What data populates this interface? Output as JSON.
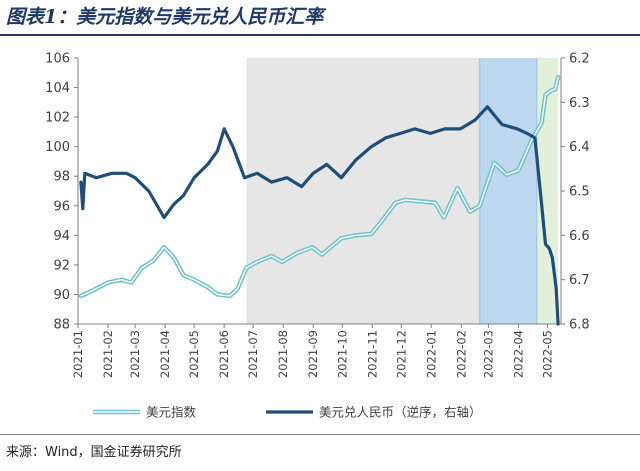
{
  "figure": {
    "title": "图表1：美元指数与美元兑人民币汇率",
    "source": "来源：Wind，国金证券研究所"
  },
  "colors": {
    "title": "#1f3864",
    "usd_index": "#6fc3cf",
    "usdcny": "#1f4e79",
    "band_gray": "#e6e6e6",
    "band_blue": "#bdd7ee",
    "band_green": "#e2efda"
  },
  "chart_data": {
    "type": "line",
    "title": "",
    "x_tick_labels": [
      "2021-01",
      "2021-02",
      "2021-03",
      "2021-04",
      "2021-05",
      "2021-06",
      "2021-07",
      "2021-08",
      "2021-09",
      "2021-10",
      "2021-11",
      "2021-12",
      "2022-01",
      "2022-02",
      "2022-03",
      "2022-04",
      "2022-05"
    ],
    "y_left": {
      "min": 88,
      "max": 106,
      "ticks": [
        88,
        90,
        92,
        94,
        96,
        98,
        100,
        102,
        104,
        106
      ]
    },
    "y_right": {
      "min": 6.2,
      "max": 6.8,
      "inverted": true,
      "ticks": [
        "6.2",
        "6.3",
        "6.4",
        "6.5",
        "6.6",
        "6.7",
        "6.8"
      ]
    },
    "shaded_periods": [
      {
        "from": "2021-06-24",
        "to": "2022-02-20",
        "color": "gray"
      },
      {
        "from": "2022-02-20",
        "to": "2022-04-20",
        "color": "blue"
      },
      {
        "from": "2022-04-20",
        "to": "2022-05-12",
        "color": "green"
      }
    ],
    "series": [
      {
        "name": "美元指数",
        "axis": "left",
        "points": [
          [
            "2021-01-04",
            89.9
          ],
          [
            "2021-01-11",
            90.1
          ],
          [
            "2021-01-20",
            90.4
          ],
          [
            "2021-02-01",
            90.8
          ],
          [
            "2021-02-15",
            91.0
          ],
          [
            "2021-02-25",
            90.8
          ],
          [
            "2021-03-08",
            91.8
          ],
          [
            "2021-03-20",
            92.3
          ],
          [
            "2021-03-31",
            93.2
          ],
          [
            "2021-04-10",
            92.5
          ],
          [
            "2021-04-20",
            91.3
          ],
          [
            "2021-05-01",
            91.0
          ],
          [
            "2021-05-15",
            90.5
          ],
          [
            "2021-05-25",
            90.0
          ],
          [
            "2021-06-07",
            89.9
          ],
          [
            "2021-06-15",
            90.4
          ],
          [
            "2021-06-24",
            91.8
          ],
          [
            "2021-07-05",
            92.2
          ],
          [
            "2021-07-20",
            92.6
          ],
          [
            "2021-07-31",
            92.2
          ],
          [
            "2021-08-15",
            92.8
          ],
          [
            "2021-08-31",
            93.2
          ],
          [
            "2021-09-10",
            92.7
          ],
          [
            "2021-09-30",
            93.8
          ],
          [
            "2021-10-15",
            94.0
          ],
          [
            "2021-10-31",
            94.1
          ],
          [
            "2021-11-10",
            94.9
          ],
          [
            "2021-11-25",
            96.2
          ],
          [
            "2021-12-05",
            96.4
          ],
          [
            "2021-12-20",
            96.3
          ],
          [
            "2022-01-05",
            96.2
          ],
          [
            "2022-01-14",
            95.2
          ],
          [
            "2022-01-28",
            97.2
          ],
          [
            "2022-02-10",
            95.6
          ],
          [
            "2022-02-20",
            96.0
          ],
          [
            "2022-03-07",
            98.9
          ],
          [
            "2022-03-20",
            98.1
          ],
          [
            "2022-04-01",
            98.4
          ],
          [
            "2022-04-15",
            100.5
          ],
          [
            "2022-04-25",
            101.6
          ],
          [
            "2022-04-29",
            103.5
          ],
          [
            "2022-05-05",
            103.8
          ],
          [
            "2022-05-09",
            103.9
          ],
          [
            "2022-05-12",
            104.7
          ]
        ]
      },
      {
        "name": "美元兑人民币（逆序，右轴）",
        "axis": "right",
        "points": [
          [
            "2021-01-04",
            6.48
          ],
          [
            "2021-01-06",
            6.54
          ],
          [
            "2021-01-08",
            6.46
          ],
          [
            "2021-01-20",
            6.47
          ],
          [
            "2021-02-05",
            6.46
          ],
          [
            "2021-02-20",
            6.46
          ],
          [
            "2021-03-01",
            6.47
          ],
          [
            "2021-03-15",
            6.5
          ],
          [
            "2021-03-31",
            6.56
          ],
          [
            "2021-04-10",
            6.53
          ],
          [
            "2021-04-20",
            6.51
          ],
          [
            "2021-05-01",
            6.47
          ],
          [
            "2021-05-15",
            6.44
          ],
          [
            "2021-05-25",
            6.41
          ],
          [
            "2021-06-01",
            6.36
          ],
          [
            "2021-06-10",
            6.4
          ],
          [
            "2021-06-22",
            6.47
          ],
          [
            "2021-07-05",
            6.46
          ],
          [
            "2021-07-20",
            6.48
          ],
          [
            "2021-08-05",
            6.47
          ],
          [
            "2021-08-20",
            6.49
          ],
          [
            "2021-09-01",
            6.46
          ],
          [
            "2021-09-15",
            6.44
          ],
          [
            "2021-09-30",
            6.47
          ],
          [
            "2021-10-15",
            6.43
          ],
          [
            "2021-10-31",
            6.4
          ],
          [
            "2021-11-15",
            6.38
          ],
          [
            "2021-11-30",
            6.37
          ],
          [
            "2021-12-15",
            6.36
          ],
          [
            "2021-12-31",
            6.37
          ],
          [
            "2022-01-15",
            6.36
          ],
          [
            "2022-01-31",
            6.36
          ],
          [
            "2022-02-15",
            6.34
          ],
          [
            "2022-02-28",
            6.31
          ],
          [
            "2022-03-15",
            6.35
          ],
          [
            "2022-03-31",
            6.36
          ],
          [
            "2022-04-10",
            6.37
          ],
          [
            "2022-04-18",
            6.38
          ],
          [
            "2022-04-25",
            6.53
          ],
          [
            "2022-04-29",
            6.62
          ],
          [
            "2022-05-03",
            6.63
          ],
          [
            "2022-05-06",
            6.65
          ],
          [
            "2022-05-10",
            6.72
          ],
          [
            "2022-05-12",
            6.8
          ]
        ]
      }
    ],
    "legend": {
      "position": "bottom"
    }
  }
}
